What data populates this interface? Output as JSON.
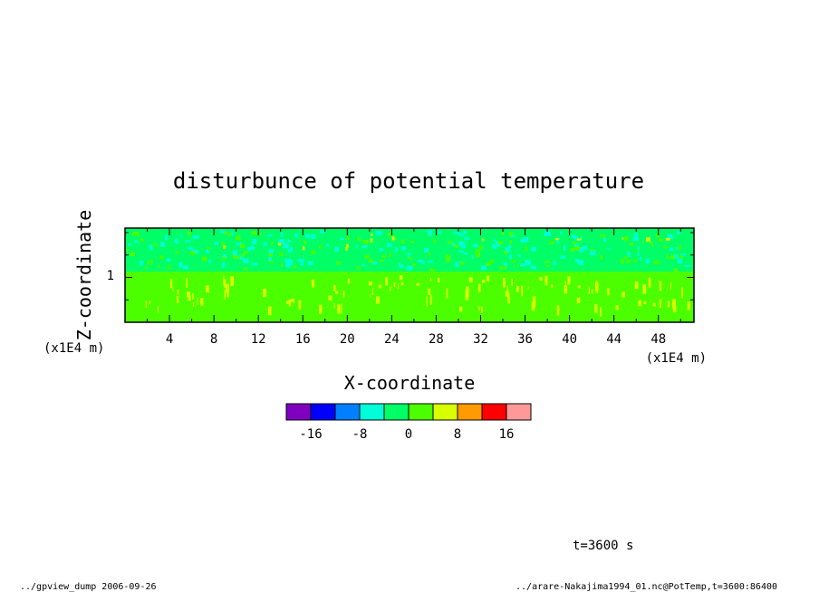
{
  "chart_data": {
    "type": "heatmap",
    "title": "disturbunce of potential temperature",
    "xlabel": "X-coordinate",
    "ylabel": "Z-coordinate",
    "x_unit": "(x1E4 m)",
    "z_unit": "(x1E4 m)",
    "x_ticks": [
      "4",
      "8",
      "12",
      "16",
      "20",
      "24",
      "28",
      "32",
      "36",
      "40",
      "44",
      "48"
    ],
    "z_ticks": [
      "1"
    ],
    "xlim": [
      0,
      51.2
    ],
    "zlim": [
      0,
      2.1
    ],
    "colorbar": {
      "colors": [
        "#7f00bf",
        "#0000ff",
        "#007fff",
        "#00ffd8",
        "#00ff66",
        "#4cff00",
        "#d8ff00",
        "#ff9900",
        "#ff0000",
        "#ff9999"
      ],
      "tick_labels": [
        "-16",
        "-8",
        "0",
        "8",
        "16"
      ]
    },
    "time_label": "t=3600 s"
  },
  "footer": {
    "left": "../gpview_dump  2006-09-26",
    "right": "../arare-Nakajima1994_01.nc@PotTemp,t=3600:86400"
  }
}
